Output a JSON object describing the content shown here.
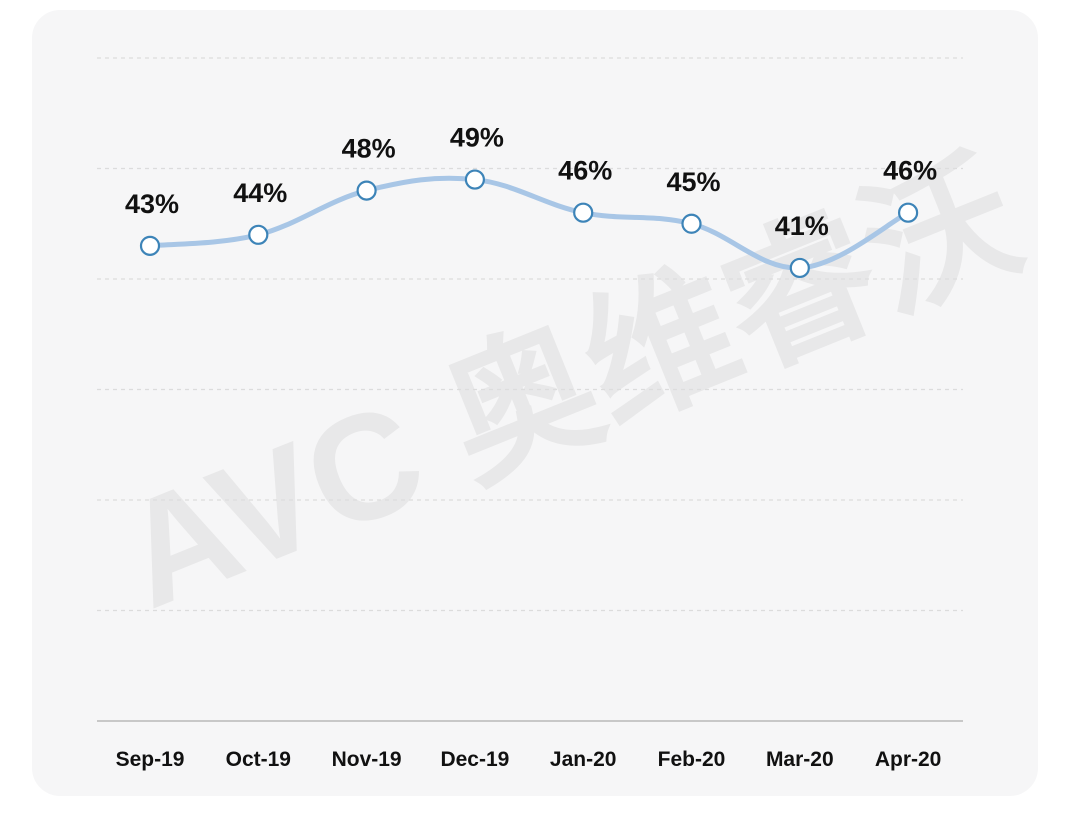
{
  "chart_data": {
    "type": "line",
    "categories": [
      "Sep-19",
      "Oct-19",
      "Nov-19",
      "Dec-19",
      "Jan-20",
      "Feb-20",
      "Mar-20",
      "Apr-20"
    ],
    "series": [
      {
        "values": [
          43,
          44,
          48,
          49,
          46,
          45,
          41,
          46
        ],
        "labels": [
          "43%",
          "44%",
          "48%",
          "49%",
          "46%",
          "45%",
          "41%",
          "46%"
        ]
      }
    ],
    "ylim": [
      0,
      60
    ],
    "grid": true,
    "legend": "none",
    "line_color": "#a8c6e6",
    "marker_stroke": "#3d84b8",
    "title": "",
    "xlabel": "",
    "ylabel": ""
  },
  "watermark": {
    "text": "AVC 奥维睿沃",
    "color": "#dedede"
  }
}
